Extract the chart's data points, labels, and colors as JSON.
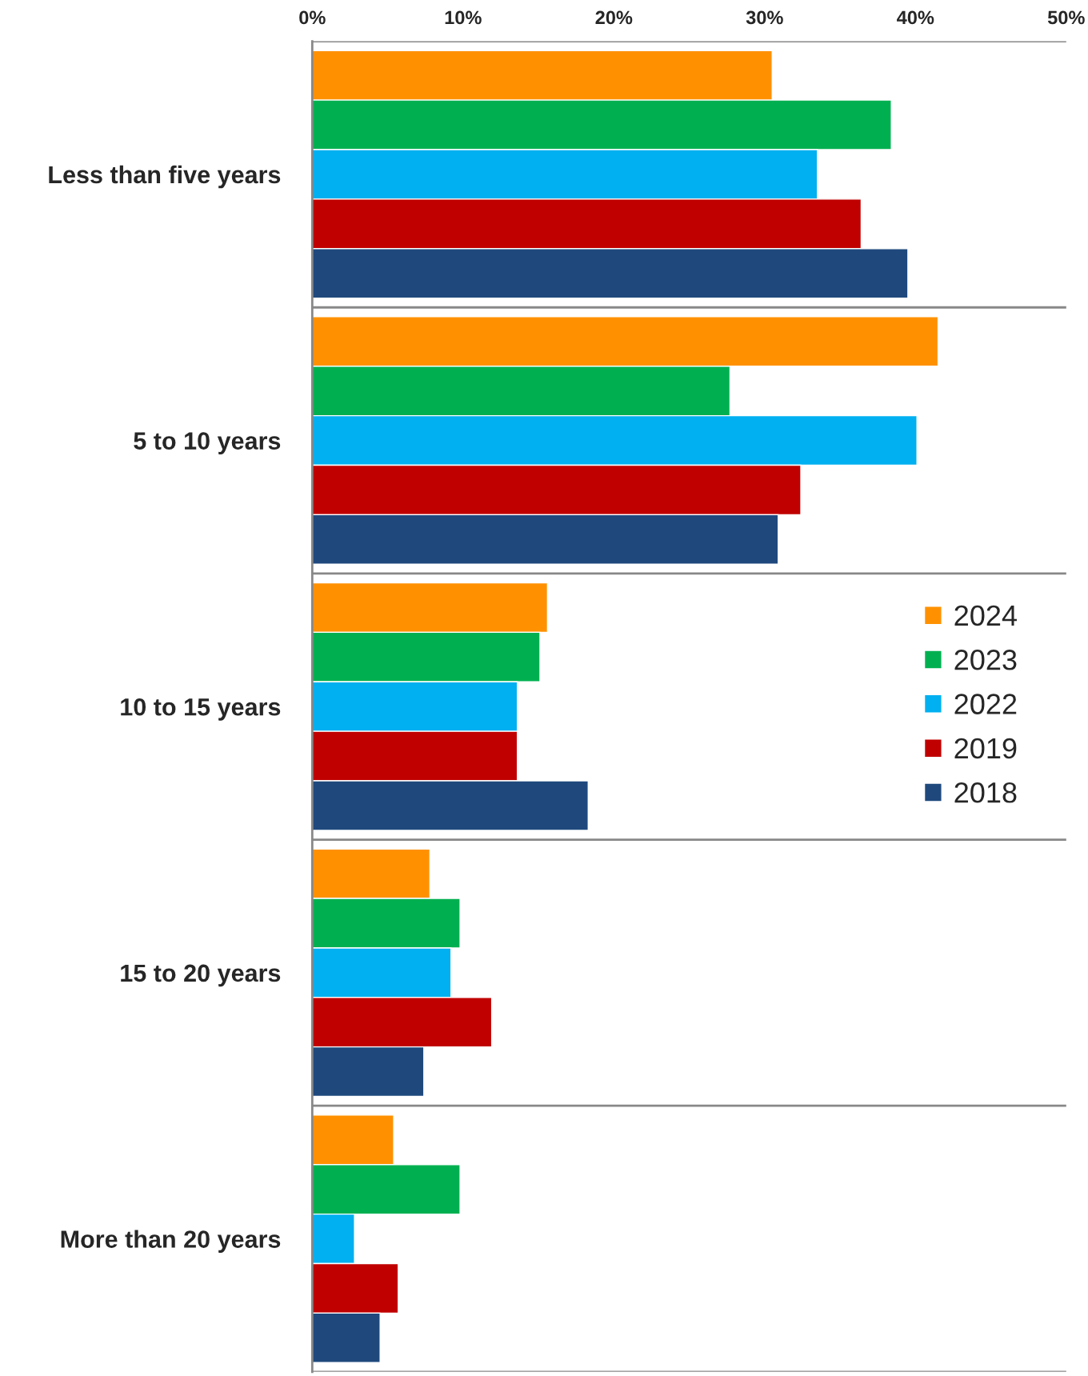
{
  "chart_data": {
    "type": "bar",
    "orientation": "horizontal",
    "categories": [
      "Less than five years",
      "5 to 10 years",
      "10 to 15 years",
      "15 to 20 years",
      "More than 20 years"
    ],
    "series": [
      {
        "name": "2024",
        "color": "#ff9100",
        "values": [
          30.5,
          41.5,
          15.6,
          7.8,
          5.4
        ]
      },
      {
        "name": "2023",
        "color": "#00b050",
        "values": [
          38.4,
          27.7,
          15.1,
          9.8,
          9.8
        ]
      },
      {
        "name": "2022",
        "color": "#00b0f0",
        "values": [
          33.5,
          40.1,
          13.6,
          9.2,
          2.8
        ]
      },
      {
        "name": "2019",
        "color": "#c00000",
        "values": [
          36.4,
          32.4,
          13.6,
          11.9,
          5.7
        ]
      },
      {
        "name": "2018",
        "color": "#1f497d",
        "values": [
          39.5,
          30.9,
          18.3,
          7.4,
          4.5
        ]
      }
    ],
    "xlim": [
      0,
      50
    ],
    "xticks": [
      {
        "value": 0,
        "label": "0%"
      },
      {
        "value": 10,
        "label": "10%"
      },
      {
        "value": 20,
        "label": "20%"
      },
      {
        "value": 30,
        "label": "30%"
      },
      {
        "value": 40,
        "label": "40%"
      },
      {
        "value": 50,
        "label": "50%"
      }
    ],
    "grid": "y",
    "legend": "center right"
  }
}
